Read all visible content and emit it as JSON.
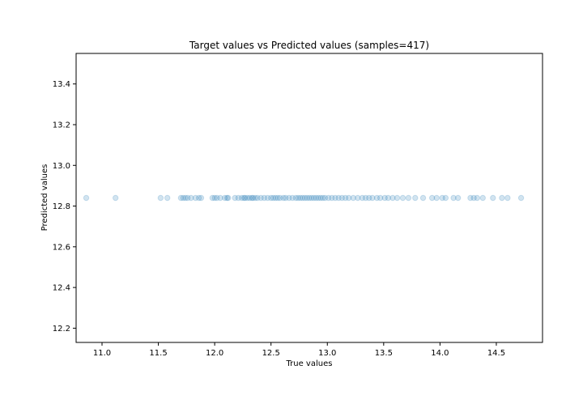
{
  "chart_data": {
    "type": "scatter",
    "title": "Target values vs Predicted values (samples=417)",
    "xlabel": "True values",
    "ylabel": "Predicted values",
    "xlim": [
      10.77,
      14.91
    ],
    "ylim": [
      12.13,
      13.55
    ],
    "xticks": [
      11.0,
      11.5,
      12.0,
      12.5,
      13.0,
      13.5,
      14.0,
      14.5
    ],
    "yticks": [
      12.2,
      12.4,
      12.6,
      12.8,
      13.0,
      13.2,
      13.4
    ],
    "grid": false,
    "marker_color": "#1f77b4",
    "marker_alpha": 0.2,
    "series": [
      {
        "x": [
          10.86,
          11.12,
          11.52,
          11.58,
          11.7,
          11.72,
          11.74,
          11.76,
          11.79,
          11.83,
          11.86,
          11.88,
          11.98,
          12.0,
          12.02,
          12.05,
          12.09,
          12.11,
          12.12,
          12.18,
          12.21,
          12.24,
          12.26,
          12.27,
          12.29,
          12.31,
          12.33,
          12.34,
          12.36,
          12.38,
          12.41,
          12.44,
          12.47,
          12.5,
          12.52,
          12.54,
          12.56,
          12.58,
          12.61,
          12.63,
          12.66,
          12.69,
          12.72,
          12.74,
          12.76,
          12.78,
          12.8,
          12.82,
          12.84,
          12.86,
          12.88,
          12.9,
          12.92,
          12.94,
          12.96,
          12.98,
          13.01,
          13.04,
          13.07,
          13.1,
          13.13,
          13.16,
          13.19,
          13.23,
          13.27,
          13.31,
          13.34,
          13.37,
          13.4,
          13.44,
          13.47,
          13.51,
          13.54,
          13.58,
          13.62,
          13.67,
          13.72,
          13.78,
          13.85,
          13.93,
          13.97,
          14.02,
          14.05,
          14.12,
          14.16,
          14.27,
          14.3,
          14.33,
          14.38,
          14.47,
          14.55,
          14.6,
          14.72
        ],
        "y": [
          12.84,
          12.84,
          12.84,
          12.84,
          12.84,
          12.84,
          12.84,
          12.84,
          12.84,
          12.84,
          12.84,
          12.84,
          12.84,
          12.84,
          12.84,
          12.84,
          12.84,
          12.84,
          12.84,
          12.84,
          12.84,
          12.84,
          12.84,
          12.84,
          12.84,
          12.84,
          12.84,
          12.84,
          12.84,
          12.84,
          12.84,
          12.84,
          12.84,
          12.84,
          12.84,
          12.84,
          12.84,
          12.84,
          12.84,
          12.84,
          12.84,
          12.84,
          12.84,
          12.84,
          12.84,
          12.84,
          12.84,
          12.84,
          12.84,
          12.84,
          12.84,
          12.84,
          12.84,
          12.84,
          12.84,
          12.84,
          12.84,
          12.84,
          12.84,
          12.84,
          12.84,
          12.84,
          12.84,
          12.84,
          12.84,
          12.84,
          12.84,
          12.84,
          12.84,
          12.84,
          12.84,
          12.84,
          12.84,
          12.84,
          12.84,
          12.84,
          12.84,
          12.84,
          12.84,
          12.84,
          12.84,
          12.84,
          12.84,
          12.84,
          12.84,
          12.84,
          12.84,
          12.84,
          12.84,
          12.84,
          12.84,
          12.84,
          12.84
        ]
      }
    ]
  }
}
